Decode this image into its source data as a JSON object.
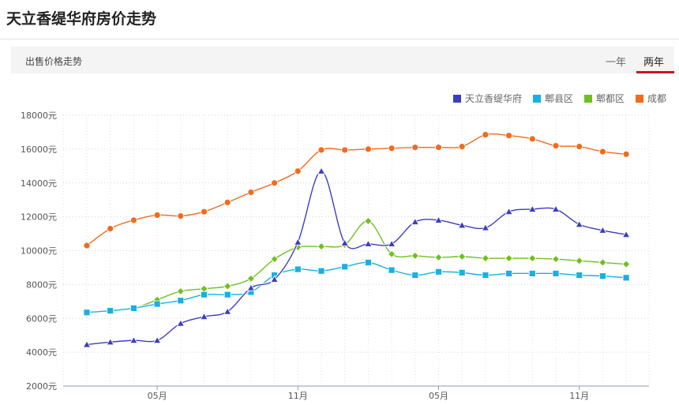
{
  "page": {
    "title": "天立香缇华府房价走势",
    "section_label": "出售价格走势",
    "tabs": [
      {
        "label": "一年",
        "active": false
      },
      {
        "label": "两年",
        "active": true
      }
    ],
    "accent_color": "#c8161d"
  },
  "chart_data": {
    "type": "line",
    "title": "",
    "xlabel": "",
    "ylabel": "",
    "ylim": [
      2000,
      18000
    ],
    "yticks": [
      "18000元",
      "16000元",
      "14000元",
      "12000元",
      "10000元",
      "8000元",
      "6000元",
      "4000元",
      "2000元"
    ],
    "xticks": [
      {
        "label": "05月",
        "index": 3
      },
      {
        "label": "11月",
        "index": 9
      },
      {
        "label": "05月",
        "index": 15
      },
      {
        "label": "11月",
        "index": 21
      }
    ],
    "grid": true,
    "legend_position": "top-right",
    "series": [
      {
        "name": "天立香缇华府",
        "color": "#3d3dbf",
        "marker": "triangle",
        "values": [
          4450,
          4600,
          4700,
          4700,
          5700,
          6100,
          6400,
          7800,
          8300,
          10500,
          14700,
          10450,
          10400,
          10400,
          11700,
          11800,
          11500,
          11350,
          12300,
          12450,
          12450,
          11550,
          11200,
          10950
        ]
      },
      {
        "name": "郫县区",
        "color": "#17b0e3",
        "marker": "square",
        "values": [
          6350,
          6450,
          6600,
          6850,
          7050,
          7400,
          7400,
          7550,
          8550,
          8900,
          8800,
          9050,
          9300,
          8850,
          8550,
          8750,
          8700,
          8550,
          8650,
          8650,
          8650,
          8550,
          8500,
          8400
        ]
      },
      {
        "name": "郫都区",
        "color": "#6ec01f",
        "marker": "diamond",
        "values": [
          6300,
          6500,
          6600,
          7100,
          7600,
          7750,
          7900,
          8350,
          9500,
          10200,
          10250,
          10350,
          11750,
          9800,
          9700,
          9600,
          9650,
          9550,
          9550,
          9550,
          9500,
          9400,
          9300,
          9200
        ]
      },
      {
        "name": "成都",
        "color": "#f26b1d",
        "marker": "circle",
        "values": [
          10300,
          11300,
          11800,
          12100,
          12050,
          12300,
          12850,
          13450,
          14000,
          14700,
          15950,
          15950,
          16000,
          16050,
          16100,
          16100,
          16150,
          16850,
          16800,
          16600,
          16200,
          16150,
          15850,
          15700
        ]
      }
    ]
  }
}
